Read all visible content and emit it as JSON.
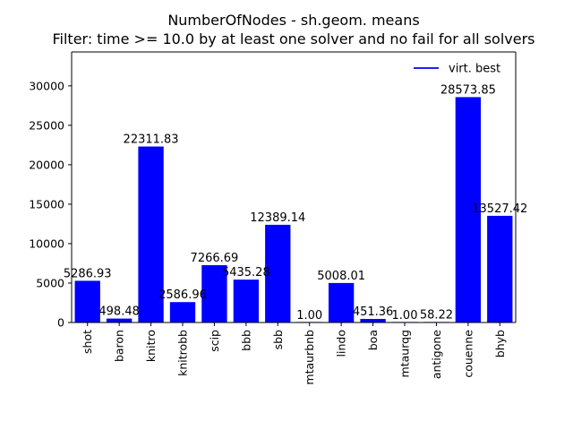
{
  "chart_data": {
    "type": "bar",
    "title": "NumberOfNodes - sh.geom. means",
    "subtitle": "Filter: time >= 10.0 by at least one solver and no fail for all solvers",
    "xlabel": "",
    "ylabel": "",
    "categories": [
      "shot",
      "baron",
      "knitro",
      "knitrobb",
      "scip",
      "bbb",
      "sbb",
      "mtaurbnb",
      "lindo",
      "boa",
      "mtaurqg",
      "antigone",
      "couenne",
      "bhyb"
    ],
    "values": [
      5286.93,
      498.48,
      22311.83,
      2586.96,
      7266.69,
      5435.28,
      12389.14,
      1.0,
      5008.01,
      451.36,
      1.0,
      58.22,
      28573.85,
      13527.42
    ],
    "value_labels": [
      "5286.93",
      "498.48",
      "22311.83",
      "2586.96",
      "7266.69",
      "5435.28",
      "12389.14",
      "1.00",
      "5008.01",
      "451.36",
      "1.00",
      "58.22",
      "28573.85",
      "13527.42"
    ],
    "ylim": [
      0,
      34300
    ],
    "yticks": [
      0,
      5000,
      10000,
      15000,
      20000,
      25000,
      30000
    ],
    "ytick_labels": [
      "0",
      "5000",
      "10000",
      "15000",
      "20000",
      "25000",
      "30000"
    ],
    "bar_color": "#0000ff",
    "legend": {
      "placement": "top-right",
      "entries": [
        {
          "label": "virt. best",
          "color": "#0000ff",
          "style": "line"
        }
      ]
    },
    "grid": false
  }
}
